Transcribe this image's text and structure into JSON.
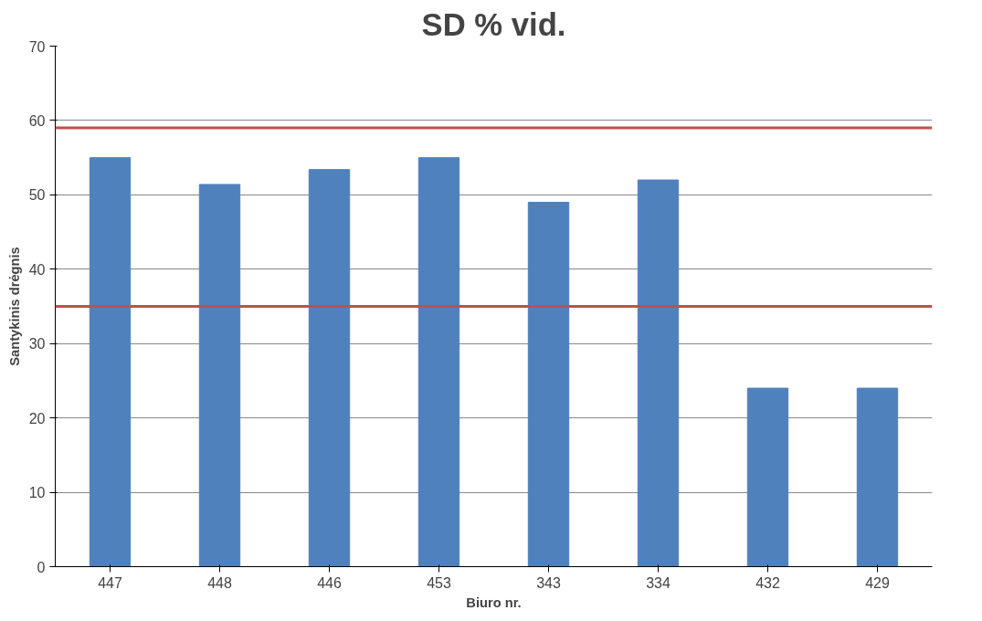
{
  "chart_data": {
    "type": "bar",
    "title": "SD % vid.",
    "xlabel": "Biuro nr.",
    "ylabel": "Santykinis drėgnis",
    "categories": [
      "447",
      "448",
      "446",
      "453",
      "343",
      "334",
      "432",
      "429"
    ],
    "values": [
      55,
      51.4,
      53.4,
      55,
      49,
      52,
      24,
      24
    ],
    "color": "#4f81bd",
    "ylim": [
      0,
      70
    ],
    "yticks": [
      0,
      10,
      20,
      30,
      40,
      50,
      60,
      70
    ],
    "grid": "y",
    "ref_lines": [
      {
        "axis": "y",
        "value": 59,
        "color": "#c0504d"
      },
      {
        "axis": "y",
        "value": 35,
        "color": "#c0504d"
      }
    ]
  }
}
